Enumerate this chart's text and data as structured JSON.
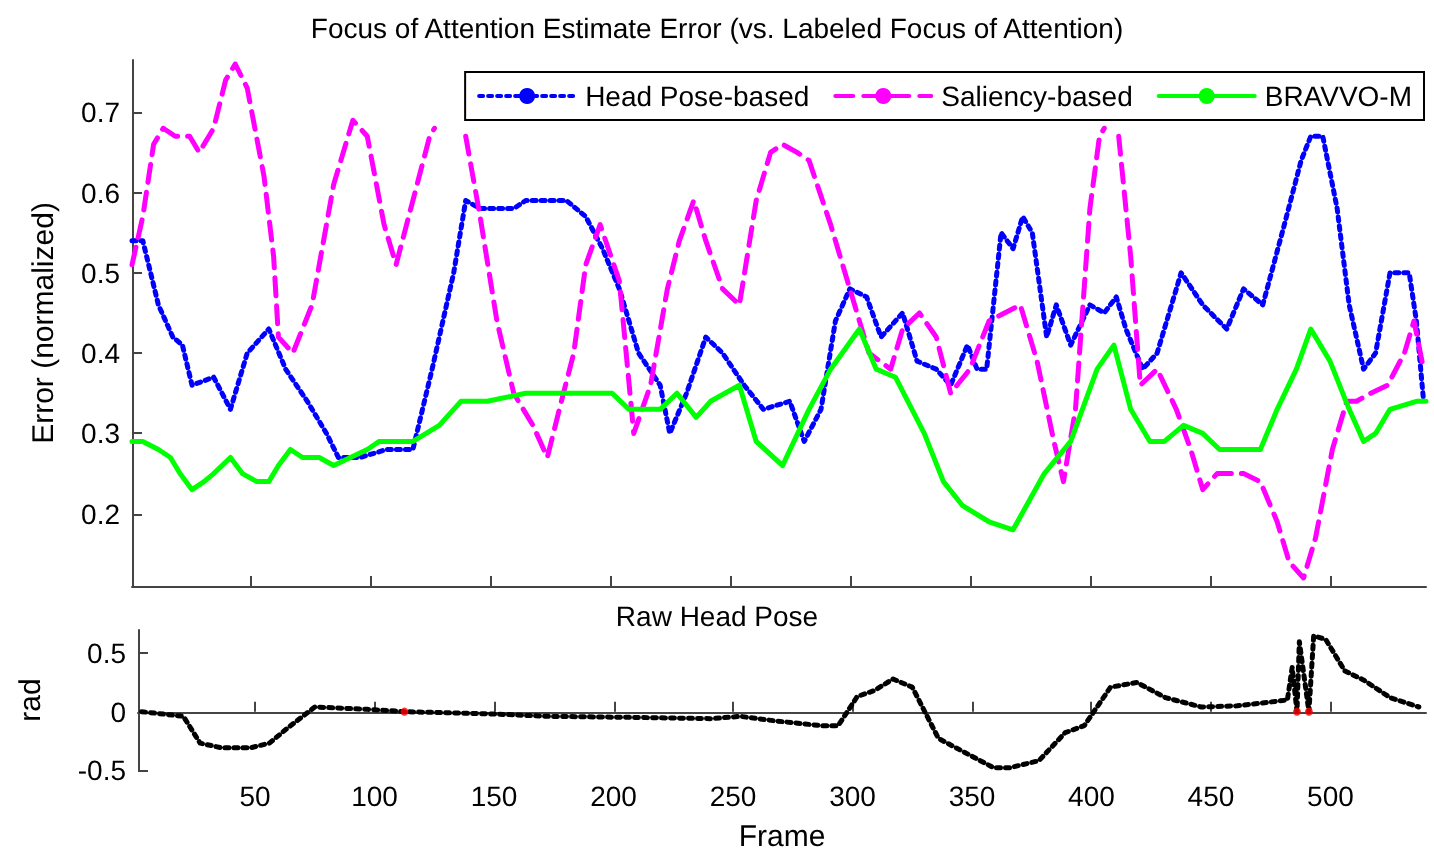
{
  "chart_data": [
    {
      "type": "line",
      "title": "Focus of Attention Estimate Error (vs. Labeled Focus of Attention)",
      "ylabel": "Error (normalized)",
      "xlim": [
        1,
        540
      ],
      "xticks": [
        50,
        100,
        150,
        200,
        250,
        300,
        350,
        400,
        450,
        500
      ],
      "ylim": [
        0.11,
        0.765
      ],
      "yticks": [
        0.2,
        0.3,
        0.4,
        0.5,
        0.6,
        0.7
      ],
      "tick_labels": "y",
      "grid": false,
      "legend": "top right",
      "marker": "none",
      "series": [
        {
          "name": "Head Pose-based",
          "color": "#0000ff",
          "line_style": "dotted",
          "x": [
            1,
            5.5,
            12,
            18,
            22,
            26,
            35,
            42,
            49,
            58,
            65,
            74,
            82,
            87,
            96,
            107,
            118,
            126,
            135,
            140,
            146,
            160,
            165,
            182,
            190,
            197,
            204,
            212,
            221,
            225,
            232,
            240,
            247,
            256,
            264,
            275,
            281,
            288,
            294,
            300,
            307,
            313,
            322,
            328,
            336,
            342,
            349,
            353,
            357,
            363,
            368,
            372,
            376,
            382,
            386,
            392,
            400,
            406,
            411,
            415,
            422,
            428,
            438,
            447,
            457,
            464,
            472,
            481,
            488,
            492,
            497,
            503,
            508,
            514,
            519,
            525,
            533,
            536,
            539
          ],
          "values": [
            0.54,
            0.54,
            0.46,
            0.42,
            0.41,
            0.36,
            0.37,
            0.33,
            0.4,
            0.43,
            0.38,
            0.34,
            0.3,
            0.27,
            0.27,
            0.28,
            0.28,
            0.38,
            0.5,
            0.59,
            0.58,
            0.58,
            0.59,
            0.59,
            0.57,
            0.53,
            0.48,
            0.4,
            0.36,
            0.3,
            0.35,
            0.42,
            0.4,
            0.36,
            0.33,
            0.34,
            0.29,
            0.33,
            0.44,
            0.48,
            0.47,
            0.42,
            0.45,
            0.39,
            0.38,
            0.36,
            0.41,
            0.38,
            0.38,
            0.55,
            0.53,
            0.57,
            0.55,
            0.42,
            0.46,
            0.41,
            0.46,
            0.45,
            0.47,
            0.43,
            0.38,
            0.4,
            0.5,
            0.46,
            0.43,
            0.48,
            0.46,
            0.56,
            0.64,
            0.67,
            0.67,
            0.58,
            0.46,
            0.38,
            0.4,
            0.5,
            0.5,
            0.44,
            0.34
          ]
        },
        {
          "name": "Saliency-based",
          "color": "#ff00ff",
          "line_style": "dashed",
          "x": [
            1,
            5.5,
            10,
            14,
            19,
            25,
            29,
            35,
            40,
            44,
            49,
            56,
            60,
            62,
            68,
            76,
            85,
            93,
            99,
            106,
            111,
            118,
            125,
            127,
            133,
            140,
            146,
            153,
            160,
            168,
            174,
            179,
            185,
            190,
            196,
            204,
            210,
            217,
            224,
            229,
            235,
            240,
            247,
            254,
            261,
            267,
            272,
            278,
            283,
            292,
            300,
            308,
            317,
            322,
            329,
            336,
            342,
            350,
            358,
            371,
            378,
            385,
            389,
            394,
            400,
            404,
            406,
            408,
            412,
            417,
            421,
            428,
            436,
            442,
            447,
            453,
            464,
            471,
            478,
            483,
            489,
            494,
            501,
            507,
            511,
            517,
            524,
            531,
            535,
            539
          ],
          "values": [
            0.51,
            0.57,
            0.66,
            0.68,
            0.67,
            0.67,
            0.65,
            0.68,
            0.74,
            0.76,
            0.73,
            0.62,
            0.52,
            0.42,
            0.4,
            0.46,
            0.61,
            0.69,
            0.67,
            0.56,
            0.51,
            0.59,
            0.67,
            0.68,
            null,
            0.67,
            0.57,
            0.44,
            0.35,
            0.31,
            0.27,
            0.33,
            0.4,
            0.51,
            0.56,
            0.49,
            0.3,
            0.36,
            0.48,
            0.54,
            0.59,
            0.54,
            0.48,
            0.46,
            0.59,
            0.65,
            0.66,
            0.65,
            0.64,
            0.56,
            0.48,
            0.4,
            0.38,
            0.43,
            0.45,
            0.42,
            0.35,
            0.38,
            0.44,
            0.46,
            0.39,
            0.29,
            0.24,
            0.33,
            0.58,
            0.67,
            0.68,
            null,
            0.67,
            0.52,
            0.36,
            0.38,
            0.33,
            0.28,
            0.23,
            0.25,
            0.25,
            0.24,
            0.19,
            0.14,
            0.12,
            0.17,
            0.28,
            0.34,
            0.34,
            0.35,
            0.36,
            0.4,
            0.44,
            0.38
          ]
        },
        {
          "name": "BRAVVO-M",
          "color": "#00ff00",
          "line_style": "solid",
          "x": [
            1,
            5.5,
            12,
            17,
            21,
            26,
            31,
            35,
            42,
            47,
            53,
            58,
            62,
            67,
            72,
            79,
            85,
            92,
            99,
            104,
            118,
            129,
            138,
            149,
            165,
            182,
            201,
            208,
            221,
            228,
            236,
            242,
            254,
            261,
            272,
            283,
            292,
            304,
            311,
            319,
            331,
            339,
            347,
            358,
            368,
            381,
            392,
            403,
            410,
            417,
            425,
            431,
            439,
            447,
            454,
            471,
            478,
            486,
            492,
            500,
            508,
            514,
            519,
            525,
            536,
            540
          ],
          "values": [
            0.29,
            0.29,
            0.28,
            0.27,
            0.25,
            0.23,
            0.24,
            0.25,
            0.27,
            0.25,
            0.24,
            0.24,
            0.26,
            0.28,
            0.27,
            0.27,
            0.26,
            0.27,
            0.28,
            0.29,
            0.29,
            0.31,
            0.34,
            0.34,
            0.35,
            0.35,
            0.35,
            0.33,
            0.33,
            0.35,
            0.32,
            0.34,
            0.36,
            0.29,
            0.26,
            0.33,
            0.38,
            0.43,
            0.38,
            0.37,
            0.3,
            0.24,
            0.21,
            0.19,
            0.18,
            0.25,
            0.29,
            0.38,
            0.41,
            0.33,
            0.29,
            0.29,
            0.31,
            0.3,
            0.28,
            0.28,
            0.33,
            0.38,
            0.43,
            0.39,
            0.33,
            0.29,
            0.3,
            0.33,
            0.34,
            0.34
          ]
        }
      ]
    },
    {
      "type": "line",
      "title": "Raw Head Pose",
      "xlabel": "Frame",
      "ylabel": "rad",
      "xlim": [
        1,
        540
      ],
      "xticks": [
        50,
        100,
        150,
        200,
        250,
        300,
        350,
        400,
        450,
        500
      ],
      "ylim": [
        -0.5,
        0.7
      ],
      "yticks": [
        -0.5,
        0,
        0.5
      ],
      "grid": false,
      "legend": false,
      "marker": "none",
      "series": [
        {
          "color": "#000000",
          "line_style": "dotted",
          "x": [
            2.5,
            20,
            27,
            36,
            48,
            56,
            63,
            75,
            97,
            112.5,
            150,
            173,
            211,
            241,
            253,
            268,
            287,
            294,
            302,
            309,
            317,
            325,
            336,
            347,
            359,
            366,
            378,
            389,
            397,
            408,
            419,
            431,
            446,
            461,
            482,
            484,
            486,
            487,
            491,
            493,
            498,
            506,
            514,
            525,
            537
          ],
          "values": [
            0,
            -0.04,
            -0.27,
            -0.31,
            -0.31,
            -0.27,
            -0.15,
            0.04,
            0.02,
            0,
            -0.02,
            -0.04,
            -0.05,
            -0.06,
            -0.04,
            -0.08,
            -0.12,
            -0.12,
            0.13,
            0.18,
            0.28,
            0.21,
            -0.23,
            -0.35,
            -0.48,
            -0.48,
            -0.42,
            -0.18,
            -0.12,
            0.21,
            0.25,
            0.12,
            0.04,
            0.05,
            0.1,
            0.38,
            0,
            0.6,
            0,
            0.65,
            0.62,
            0.35,
            0.27,
            0.12,
            0.04
          ]
        },
        {
          "type": "scatter",
          "color": "#ff0000",
          "marker": "circle",
          "x": [
            112.5,
            486,
            491
          ],
          "values": [
            0,
            0,
            0
          ]
        }
      ]
    }
  ]
}
